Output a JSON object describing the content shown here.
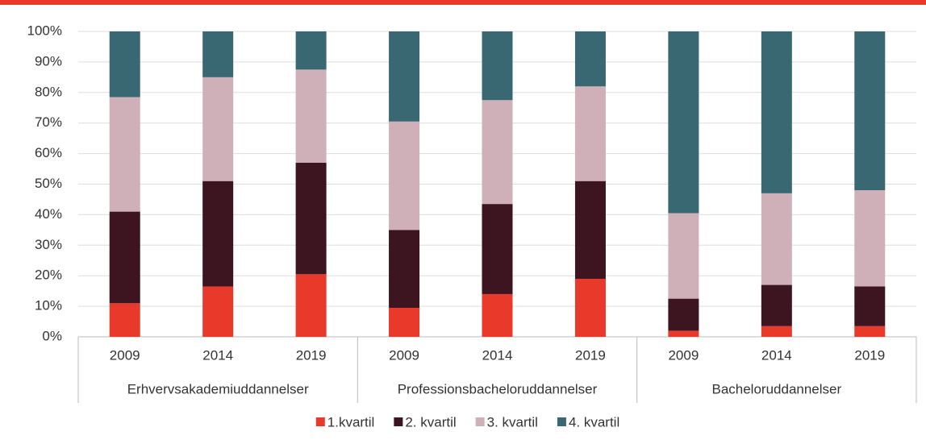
{
  "chart_data": {
    "type": "stacked_bar",
    "categories": [
      "2009",
      "2014",
      "2019",
      "2009",
      "2014",
      "2019",
      "2009",
      "2014",
      "2019"
    ],
    "groups": [
      "Erhvervsakademiuddannelser",
      "Professionsbacheloruddannelser",
      "Bacheloruddannelser"
    ],
    "series": [
      {
        "name": "1.kvartil",
        "color": "#e8392b",
        "values": [
          11,
          16.5,
          20.5,
          9.5,
          14,
          19,
          2,
          3.5,
          3.5
        ]
      },
      {
        "name": "2. kvartil",
        "color": "#3d1520",
        "values": [
          30,
          34.5,
          36.5,
          25.5,
          29.5,
          32,
          10.5,
          13.5,
          13
        ]
      },
      {
        "name": "3. kvartil",
        "color": "#cfb0b8",
        "values": [
          37.5,
          34,
          30.5,
          35.5,
          34,
          31,
          28,
          30,
          31.5
        ]
      },
      {
        "name": "4. kvartil",
        "color": "#3a6872",
        "values": [
          21.5,
          15,
          12.5,
          29.5,
          22.5,
          18,
          59.5,
          53,
          52
        ]
      }
    ],
    "ylim": [
      0,
      100
    ],
    "yticks": [
      {
        "value": 0,
        "label": "0%"
      },
      {
        "value": 10,
        "label": "10%"
      },
      {
        "value": 20,
        "label": "20%"
      },
      {
        "value": 30,
        "label": "30%"
      },
      {
        "value": 40,
        "label": "40%"
      },
      {
        "value": 50,
        "label": "50%"
      },
      {
        "value": 60,
        "label": "60%"
      },
      {
        "value": 70,
        "label": "70%"
      },
      {
        "value": 80,
        "label": "80%"
      },
      {
        "value": 90,
        "label": "90%"
      },
      {
        "value": 100,
        "label": "100%"
      }
    ],
    "grid": true,
    "legend": "bottom"
  }
}
